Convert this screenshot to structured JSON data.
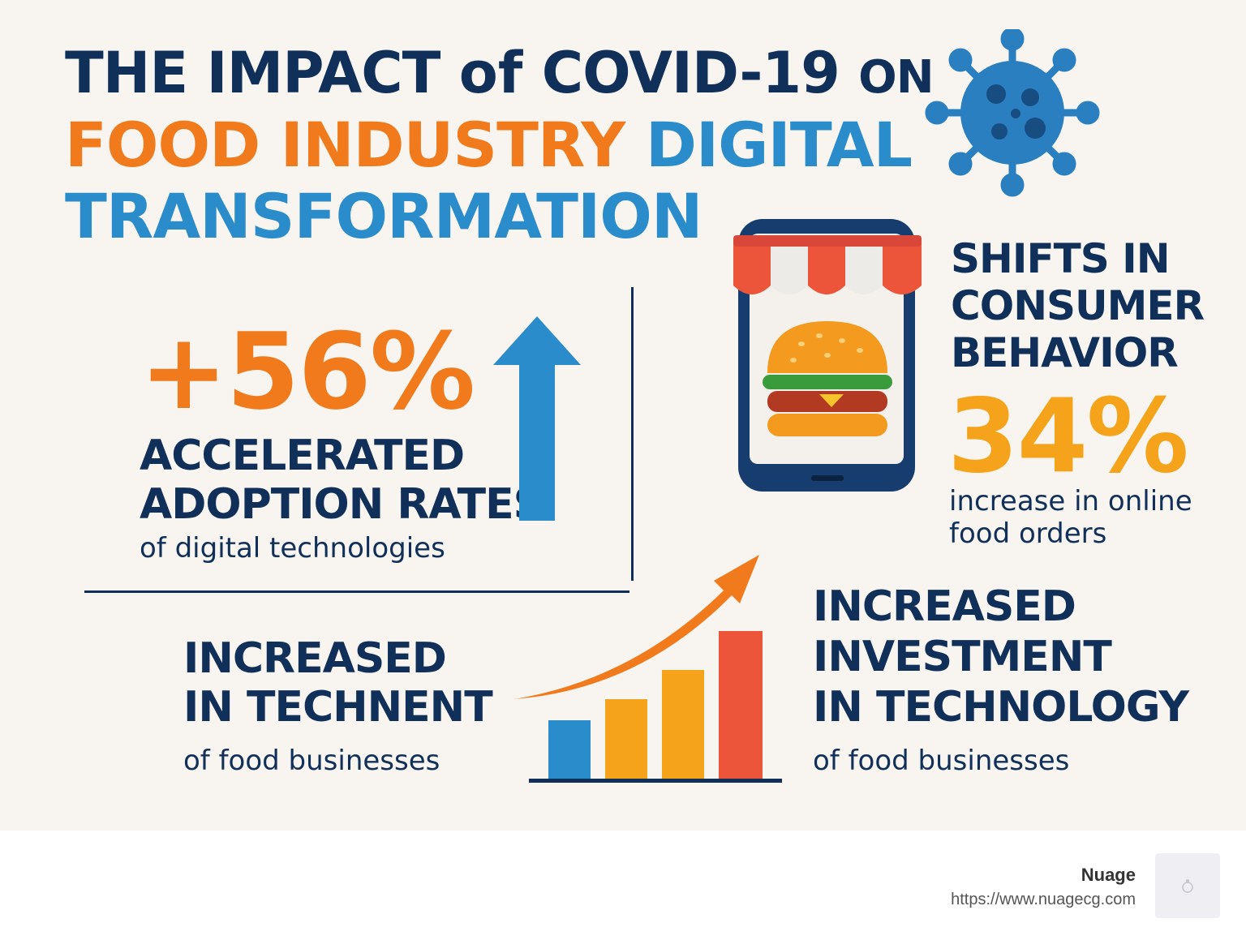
{
  "title": {
    "line1_part1": "THE IMPACT",
    "line1_part2": "of",
    "line1_part3": "COVID-19",
    "line1_part4": "ON",
    "line2_orange": "FOOD INDUSTRY",
    "line2_blue": "DIGITAL",
    "line3": "TRANSFORMATION"
  },
  "adoption": {
    "stat": "+56%",
    "heading_line1": "ACCELERATED",
    "heading_line2": "ADOPTION RATES",
    "description": "of digital technologies"
  },
  "consumer": {
    "heading_line1": "SHIFTS IN",
    "heading_line2": "CONSUMER",
    "heading_line3": "BEHAVIOR",
    "stat": "34%",
    "description_line1": "increase in online",
    "description_line2": "food orders"
  },
  "technent": {
    "heading_line1": "INCREASED",
    "heading_line2": "IN TECHNENT",
    "description": "of food businesses"
  },
  "investment": {
    "heading_line1": "INCREASED",
    "heading_line2": "INVESTMENT",
    "heading_line3": "IN TECHNOLOGY",
    "description": "of food businesses"
  },
  "icons": {
    "virus": "virus-icon",
    "phone": "smartphone-store-icon",
    "burger": "burger-icon",
    "up_arrow": "up-arrow-icon",
    "growth": "growth-bar-chart-icon"
  },
  "colors": {
    "navy": "#10305a",
    "orange": "#f07a1c",
    "blue": "#2a8ccb",
    "gold": "#f5a31a",
    "red": "#ec553a",
    "background": "#f8f5f0"
  },
  "footer": {
    "brand": "Nuage",
    "url": "https://www.nuagecg.com"
  }
}
